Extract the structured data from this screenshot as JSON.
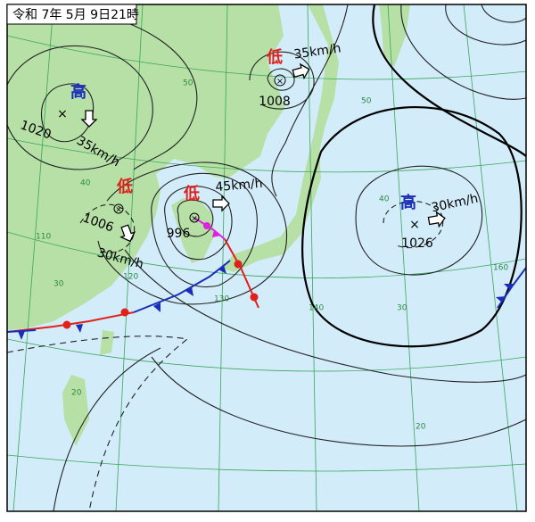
{
  "title": "令和 7年 5月 9日21時",
  "systems": [
    {
      "kind": "高",
      "pressure": "1020",
      "speed": "35km/h"
    },
    {
      "kind": "低",
      "pressure": "1006",
      "speed": "30km/h"
    },
    {
      "kind": "低",
      "pressure": "996",
      "speed": "45km/h"
    },
    {
      "kind": "低",
      "pressure": "1008",
      "speed": "35km/h"
    },
    {
      "kind": "高",
      "pressure": "1026",
      "speed": "30km/h"
    }
  ],
  "grid_labels": [
    "50",
    "50",
    "40",
    "40",
    "30",
    "30",
    "20",
    "20",
    "110",
    "120",
    "130",
    "140",
    "160"
  ]
}
